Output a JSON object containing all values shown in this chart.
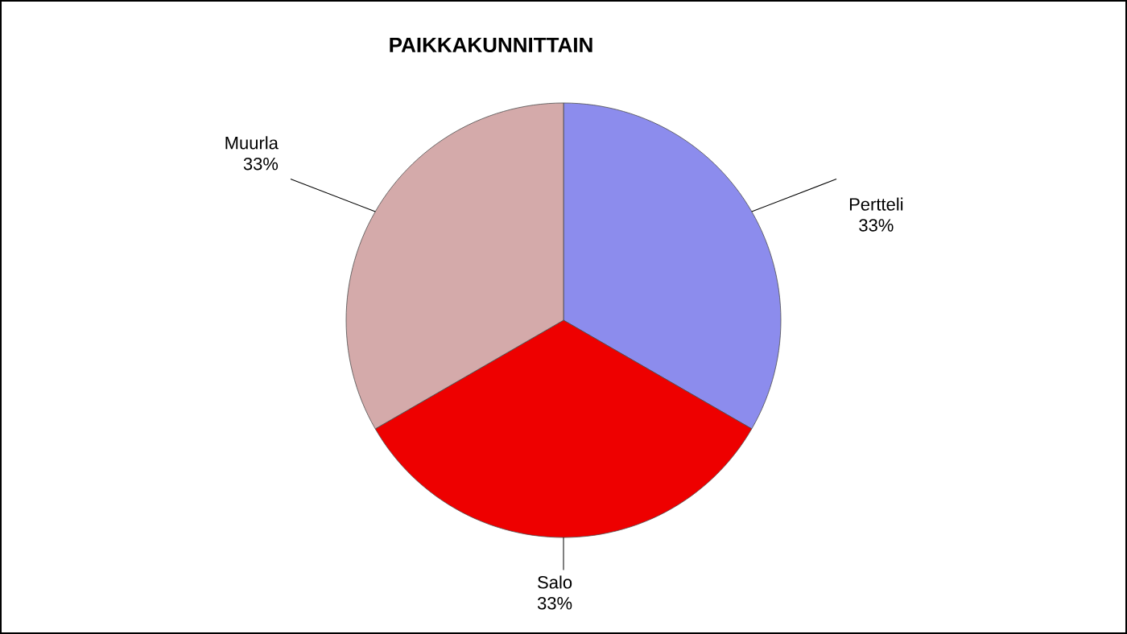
{
  "chart_data": {
    "type": "pie",
    "title": "PAIKKAKUNNITTAIN",
    "categories": [
      "Pertteli",
      "Salo",
      "Muurla"
    ],
    "values": [
      33,
      33,
      33
    ],
    "value_labels": [
      "33%",
      "33%",
      "33%"
    ],
    "colors": [
      "#8c8ced",
      "#ee0000",
      "#d4aaaa"
    ]
  }
}
